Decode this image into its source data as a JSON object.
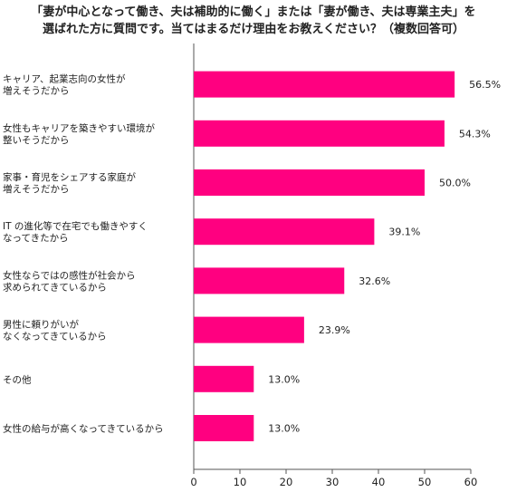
{
  "chart_data": {
    "type": "bar",
    "orientation": "horizontal",
    "title": [
      "「妻が中心となって働き、夫は補助的に働く」または「妻が働き、夫は専業主夫」を",
      "選ばれた方に質問です。当てはまるだけ理由をお教えください？（複数回答可）"
    ],
    "categories": [
      [
        "キャリア、起業志向の女性が",
        "増えそうだから"
      ],
      [
        "女性もキャリアを築きやすい環境が",
        "整いそうだから"
      ],
      [
        "家事・育児をシェアする家庭が",
        "増えそうだから"
      ],
      [
        "IT の進化等で在宅でも働きやすく",
        "なってきたから"
      ],
      [
        "女性ならではの感性が社会から",
        "求められてきているから"
      ],
      [
        "男性に頼りがいが",
        "なくなってきているから"
      ],
      [
        "その他"
      ],
      [
        "女性の給与が高くなってきているから"
      ]
    ],
    "values": [
      56.5,
      54.3,
      50.0,
      39.1,
      32.6,
      23.9,
      13.0,
      13.0
    ],
    "value_labels": [
      "56.5%",
      "54.3%",
      "50.0%",
      "39.1%",
      "32.6%",
      "23.9%",
      "13.0%",
      "13.0%"
    ],
    "xlim": [
      0,
      60
    ],
    "xticks": [
      "0",
      "10",
      "20",
      "30",
      "40",
      "50",
      "60"
    ],
    "grid": false,
    "bar_color": "#ff0080"
  }
}
